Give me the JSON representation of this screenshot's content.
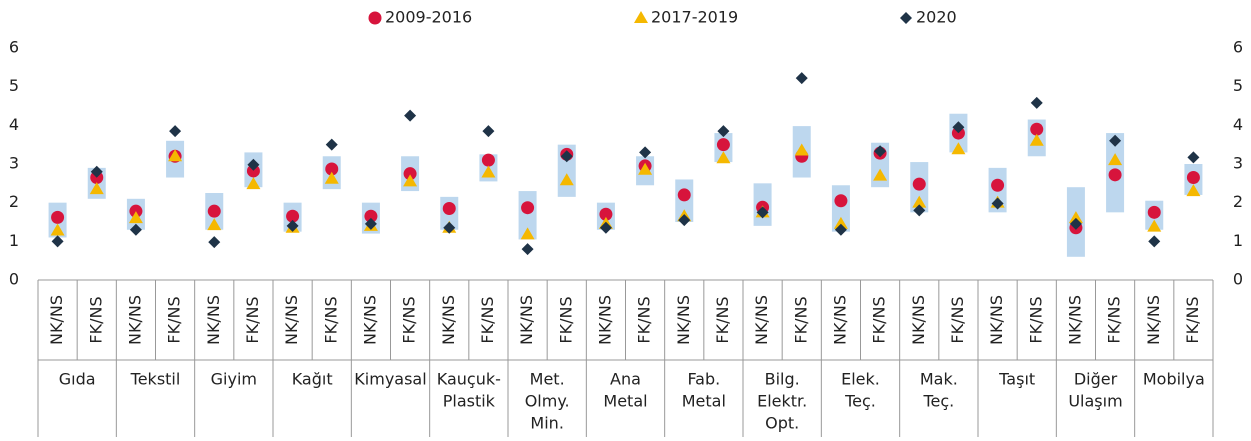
{
  "chart_data": {
    "type": "dot-range",
    "series": [
      {
        "name": "2009-2016",
        "color": "#d7143c",
        "marker": "circle",
        "values": [
          1.62,
          2.65,
          1.78,
          3.2,
          1.78,
          2.82,
          1.65,
          2.87,
          1.65,
          2.75,
          1.85,
          3.1,
          1.87,
          3.25,
          1.7,
          2.95,
          2.2,
          3.5,
          1.88,
          3.2,
          2.05,
          3.28,
          2.48,
          3.8,
          2.45,
          3.9,
          1.35,
          2.72,
          1.75,
          2.65
        ]
      },
      {
        "name": "2017-2019",
        "color": "#f5b800",
        "marker": "triangle",
        "values": [
          1.28,
          2.35,
          1.6,
          3.2,
          1.42,
          2.48,
          1.35,
          2.62,
          1.4,
          2.55,
          1.35,
          2.78,
          1.18,
          2.58,
          1.45,
          2.85,
          1.65,
          3.15,
          1.75,
          3.35,
          1.45,
          2.7,
          2.0,
          3.38,
          2.0,
          3.6,
          1.6,
          3.1,
          1.38,
          2.3
        ]
      },
      {
        "name": "2020",
        "color": "#1f3347",
        "marker": "diamond",
        "values": [
          1.0,
          2.8,
          1.3,
          3.85,
          0.98,
          2.98,
          1.4,
          3.5,
          1.45,
          4.25,
          1.35,
          3.85,
          0.8,
          3.2,
          1.35,
          3.3,
          1.55,
          3.85,
          1.75,
          5.22,
          1.3,
          3.33,
          1.8,
          3.95,
          1.98,
          4.58,
          1.45,
          3.6,
          1.0,
          3.17
        ]
      }
    ],
    "ranges": [
      [
        1.1,
        2.0
      ],
      [
        2.1,
        2.9
      ],
      [
        1.3,
        2.1
      ],
      [
        2.65,
        3.6
      ],
      [
        1.3,
        2.25
      ],
      [
        2.4,
        3.3
      ],
      [
        1.25,
        2.0
      ],
      [
        2.35,
        3.2
      ],
      [
        1.2,
        2.0
      ],
      [
        2.3,
        3.2
      ],
      [
        1.3,
        2.15
      ],
      [
        2.55,
        3.25
      ],
      [
        1.05,
        2.3
      ],
      [
        2.15,
        3.5
      ],
      [
        1.3,
        2.0
      ],
      [
        2.45,
        3.2
      ],
      [
        1.5,
        2.6
      ],
      [
        3.05,
        3.8
      ],
      [
        1.4,
        2.5
      ],
      [
        2.65,
        3.98
      ],
      [
        1.25,
        2.45
      ],
      [
        2.4,
        3.55
      ],
      [
        1.75,
        3.05
      ],
      [
        3.3,
        4.3
      ],
      [
        1.75,
        2.9
      ],
      [
        3.2,
        4.15
      ],
      [
        0.6,
        2.4
      ],
      [
        1.75,
        3.8
      ],
      [
        1.3,
        2.05
      ],
      [
        2.2,
        3.0
      ]
    ],
    "range_color": "#bdd7ee",
    "categories": [
      "NK/NS",
      "FK/NS",
      "NK/NS",
      "FK/NS",
      "NK/NS",
      "FK/NS",
      "NK/NS",
      "FK/NS",
      "NK/NS",
      "FK/NS",
      "NK/NS",
      "FK/NS",
      "NK/NS",
      "FK/NS",
      "NK/NS",
      "FK/NS",
      "NK/NS",
      "FK/NS",
      "NK/NS",
      "FK/NS",
      "NK/NS",
      "FK/NS",
      "NK/NS",
      "FK/NS",
      "NK/NS",
      "FK/NS",
      "NK/NS",
      "FK/NS",
      "NK/NS",
      "FK/NS"
    ],
    "groups": [
      [
        "Gıda"
      ],
      [
        "Tekstil"
      ],
      [
        "Giyim"
      ],
      [
        "Kağıt"
      ],
      [
        "Kimyasal"
      ],
      [
        "Kauçuk-",
        "Plastik"
      ],
      [
        "Met.",
        "Olmy.",
        "Min."
      ],
      [
        "Ana",
        "Metal"
      ],
      [
        "Fab.",
        "Metal"
      ],
      [
        "Bilg.",
        "Elektr.",
        "Opt."
      ],
      [
        "Elek.",
        "Teç."
      ],
      [
        "Mak.",
        "Teç."
      ],
      [
        "Taşıt"
      ],
      [
        "Diğer",
        "Ulaşım"
      ],
      [
        "Mobilya"
      ]
    ],
    "ylim": [
      0,
      6
    ],
    "yticks": [
      0,
      1,
      2,
      3,
      4,
      5,
      6
    ],
    "y2lim": [
      0,
      6
    ],
    "y2ticks": [
      0,
      1,
      2,
      3,
      4,
      5,
      6
    ],
    "legend": "top"
  }
}
